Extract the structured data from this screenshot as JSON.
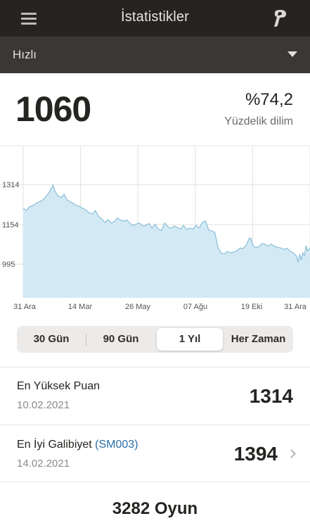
{
  "header": {
    "title": "İstatistikler",
    "menu_icon": "hamburger-menu-icon",
    "logo_icon": "pawn-logo-icon"
  },
  "mode_select": {
    "selected": "Hızlı",
    "caret_icon": "caret-down-icon"
  },
  "summary": {
    "rating": "1060",
    "percentile": "%74,2",
    "percentile_label": "Yüzdelik dilim"
  },
  "chart_data": {
    "type": "area",
    "title": "",
    "xlabel": "",
    "ylabel": "",
    "x_tick_labels": [
      "31 Ara",
      "14 Mar",
      "26 May",
      "07 Ağu",
      "19 Eki",
      "31 Ara"
    ],
    "y_tick_labels": [
      "1314",
      "1154",
      "995"
    ],
    "y_ticks": [
      1314,
      1154,
      995
    ],
    "ylim": [
      860,
      1470
    ],
    "x_range": [
      0,
      365
    ],
    "grid": true,
    "line_color": "#8fc1d9",
    "fill_color": "#d3eaf5",
    "series": [
      {
        "points": [
          [
            0,
            1220
          ],
          [
            4,
            1210
          ],
          [
            8,
            1225
          ],
          [
            12,
            1230
          ],
          [
            16,
            1238
          ],
          [
            20,
            1245
          ],
          [
            24,
            1250
          ],
          [
            28,
            1262
          ],
          [
            32,
            1278
          ],
          [
            36,
            1300
          ],
          [
            38,
            1312
          ],
          [
            40,
            1290
          ],
          [
            44,
            1270
          ],
          [
            48,
            1262
          ],
          [
            52,
            1275
          ],
          [
            56,
            1252
          ],
          [
            60,
            1245
          ],
          [
            64,
            1238
          ],
          [
            68,
            1230
          ],
          [
            72,
            1226
          ],
          [
            76,
            1218
          ],
          [
            80,
            1212
          ],
          [
            84,
            1200
          ],
          [
            88,
            1196
          ],
          [
            92,
            1210
          ],
          [
            96,
            1186
          ],
          [
            100,
            1176
          ],
          [
            104,
            1162
          ],
          [
            108,
            1174
          ],
          [
            112,
            1160
          ],
          [
            116,
            1166
          ],
          [
            120,
            1180
          ],
          [
            124,
            1172
          ],
          [
            128,
            1168
          ],
          [
            132,
            1172
          ],
          [
            136,
            1158
          ],
          [
            140,
            1150
          ],
          [
            144,
            1156
          ],
          [
            148,
            1160
          ],
          [
            152,
            1148
          ],
          [
            156,
            1150
          ],
          [
            160,
            1158
          ],
          [
            164,
            1140
          ],
          [
            168,
            1155
          ],
          [
            172,
            1135
          ],
          [
            176,
            1130
          ],
          [
            180,
            1160
          ],
          [
            184,
            1145
          ],
          [
            188,
            1138
          ],
          [
            192,
            1148
          ],
          [
            196,
            1142
          ],
          [
            200,
            1135
          ],
          [
            204,
            1150
          ],
          [
            208,
            1134
          ],
          [
            212,
            1140
          ],
          [
            216,
            1135
          ],
          [
            220,
            1150
          ],
          [
            224,
            1140
          ],
          [
            228,
            1162
          ],
          [
            232,
            1168
          ],
          [
            234,
            1150
          ],
          [
            236,
            1132
          ],
          [
            240,
            1128
          ],
          [
            244,
            1122
          ],
          [
            248,
            1060
          ],
          [
            252,
            1040
          ],
          [
            256,
            1036
          ],
          [
            260,
            1046
          ],
          [
            264,
            1040
          ],
          [
            268,
            1044
          ],
          [
            272,
            1048
          ],
          [
            276,
            1060
          ],
          [
            280,
            1058
          ],
          [
            284,
            1072
          ],
          [
            288,
            1100
          ],
          [
            290,
            1098
          ],
          [
            292,
            1070
          ],
          [
            296,
            1062
          ],
          [
            300,
            1066
          ],
          [
            304,
            1078
          ],
          [
            308,
            1074
          ],
          [
            312,
            1068
          ],
          [
            316,
            1075
          ],
          [
            320,
            1066
          ],
          [
            324,
            1062
          ],
          [
            328,
            1060
          ],
          [
            332,
            1054
          ],
          [
            336,
            1058
          ],
          [
            340,
            1046
          ],
          [
            344,
            1040
          ],
          [
            348,
            1026
          ],
          [
            350,
            1002
          ],
          [
            352,
            1035
          ],
          [
            354,
            1012
          ],
          [
            356,
            1040
          ],
          [
            358,
            1030
          ],
          [
            360,
            1068
          ],
          [
            362,
            1048
          ],
          [
            365,
            1060
          ]
        ]
      }
    ]
  },
  "periods": {
    "items": [
      "30 Gün",
      "90 Gün",
      "1 Yıl",
      "Her Zaman"
    ],
    "active": "1 Yıl"
  },
  "stats": {
    "highest": {
      "label": "En Yüksek Puan",
      "date": "10.02.2021",
      "value": "1314"
    },
    "best_win": {
      "label": "En İyi Galibiyet",
      "opponent": "(SM003)",
      "date": "14.02.2021",
      "value": "1394",
      "chevron_icon": "chevron-right-icon"
    }
  },
  "games": {
    "label": "3282 Oyun"
  }
}
